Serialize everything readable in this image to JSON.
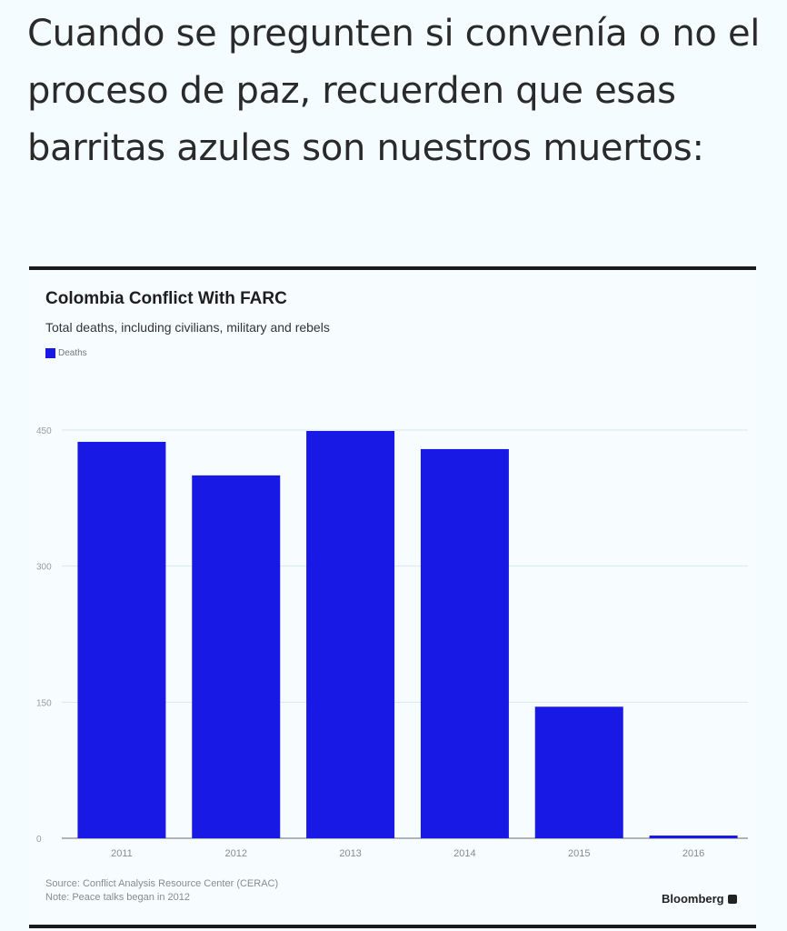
{
  "caption": {
    "text": "Cuando se pregunten si convenía o no el proceso de paz, recuerden que esas barritas azules son nuestros muertos:"
  },
  "chart_data": {
    "type": "bar",
    "title": "Colombia Conflict With FARC",
    "subtitle": "Total deaths, including civilians, military and rebels",
    "categories": [
      "2011",
      "2012",
      "2013",
      "2014",
      "2015",
      "2016"
    ],
    "series": [
      {
        "name": "Deaths",
        "values": [
          437,
          400,
          449,
          429,
          145,
          3
        ],
        "color": "#1919e6"
      }
    ],
    "yticks": [
      0,
      150,
      300,
      450
    ],
    "ylim": [
      0,
      450
    ],
    "grid": true,
    "legend": "top-left",
    "xlabel": "",
    "ylabel": ""
  },
  "footer": {
    "source": "Source: Conflict Analysis Resource Center (CERAC)",
    "note": "Note: Peace talks began in 2012",
    "brand": "Bloomberg"
  }
}
